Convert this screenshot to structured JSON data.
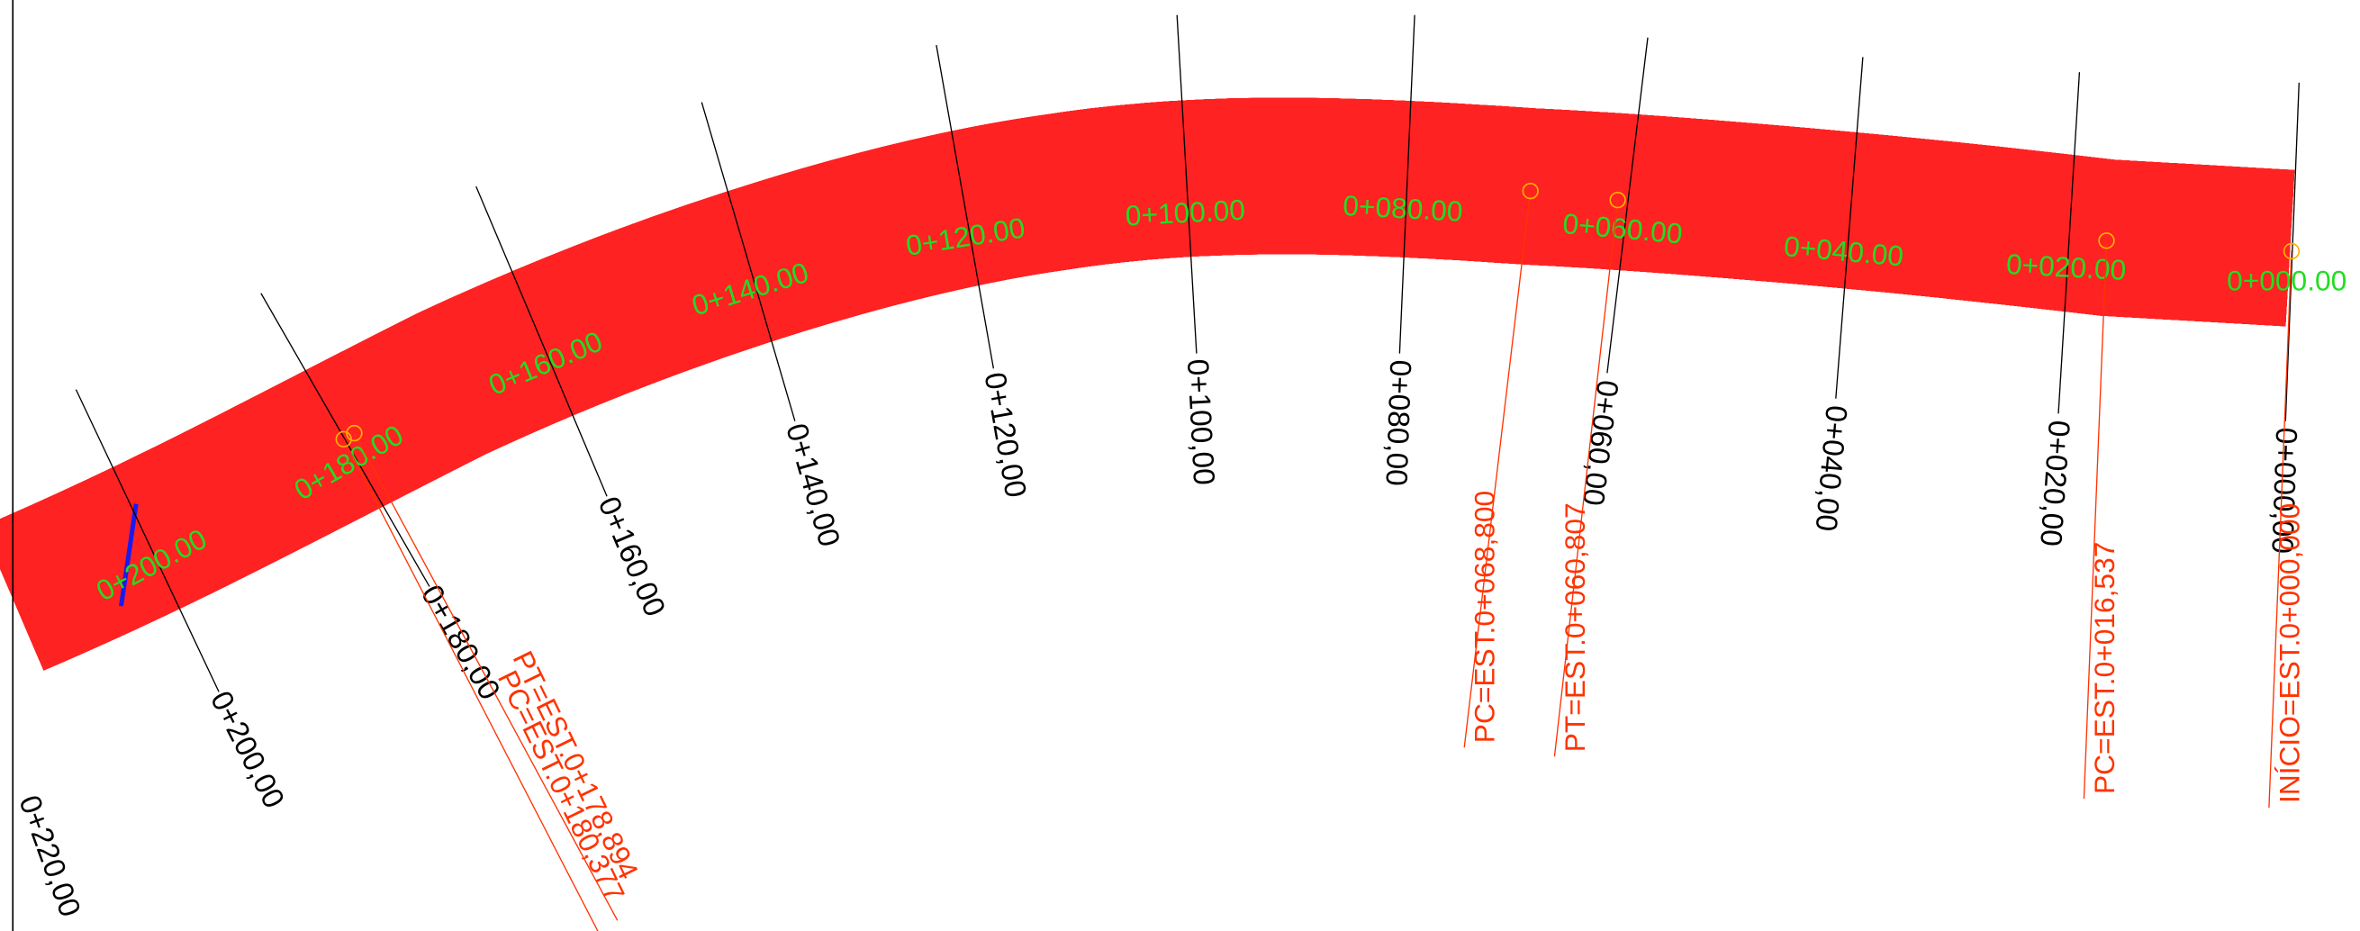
{
  "stations": [
    {
      "centerline_label": "0+000.00",
      "section_label": "0+000,00"
    },
    {
      "centerline_label": "0+020.00",
      "section_label": "0+020,00"
    },
    {
      "centerline_label": "0+040.00",
      "section_label": "0+040,00"
    },
    {
      "centerline_label": "0+060.00",
      "section_label": "0+060,00"
    },
    {
      "centerline_label": "0+080.00",
      "section_label": "0+080,00"
    },
    {
      "centerline_label": "0+100.00",
      "section_label": "0+100,00"
    },
    {
      "centerline_label": "0+120.00",
      "section_label": "0+120,00"
    },
    {
      "centerline_label": "0+140.00",
      "section_label": "0+140,00"
    },
    {
      "centerline_label": "0+160.00",
      "section_label": "0+160,00"
    },
    {
      "centerline_label": "0+180.00",
      "section_label": "0+180,00"
    },
    {
      "centerline_label": "0+200.00",
      "section_label": "0+200,00"
    }
  ],
  "edge_section_label": "0+220,00",
  "curve_points": [
    {
      "label": "INÍCIO=EST.0+000,000"
    },
    {
      "label": "PC=EST.0+016,537"
    },
    {
      "label": "PT=EST.0+060,807"
    },
    {
      "label": "PC=EST.0+068,800"
    },
    {
      "label": "PT=EST.0+178,894"
    },
    {
      "label": "PC=EST.0+180,377"
    }
  ]
}
